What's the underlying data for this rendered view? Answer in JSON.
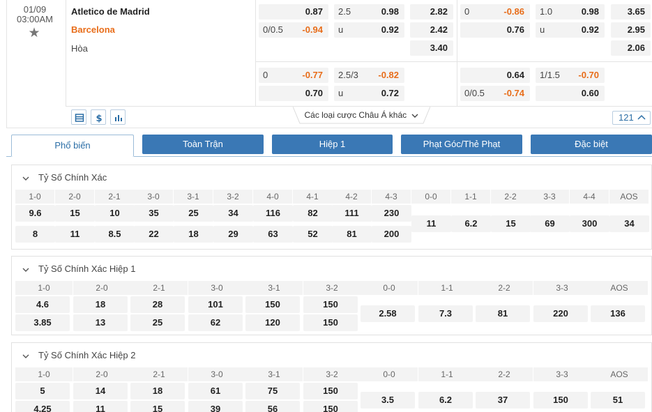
{
  "match": {
    "date": "01/09",
    "time": "03:00AM",
    "home": "Atletico de Madrid",
    "away": "Barcelona",
    "draw": "Hòa",
    "row1": {
      "c1": [
        "",
        "0.87"
      ],
      "c2": [
        "2.5",
        "0.98"
      ],
      "c3": "2.82",
      "c4": [
        "0",
        "-0.86"
      ],
      "c5": [
        "1.0",
        "0.98"
      ],
      "c6": "3.65"
    },
    "row2": {
      "c1": [
        "0/0.5",
        "-0.94"
      ],
      "c2": [
        "u",
        "0.92"
      ],
      "c3": "2.42",
      "c4": [
        "",
        "0.76"
      ],
      "c5": [
        "u",
        "0.92"
      ],
      "c6": "2.95"
    },
    "row3": {
      "c3": "3.40",
      "c6": "2.06"
    },
    "row4": {
      "c1": [
        "0",
        "-0.77"
      ],
      "c2": [
        "2.5/3",
        "-0.82"
      ],
      "c4": [
        "",
        "0.64"
      ],
      "c5": [
        "1/1.5",
        "-0.70"
      ]
    },
    "row5": {
      "c1": [
        "",
        "0.70"
      ],
      "c2": [
        "u",
        "0.72"
      ],
      "c4": [
        "0/0.5",
        "-0.74"
      ],
      "c5": [
        "",
        "0.60"
      ]
    },
    "more_label": "Các loại cược Châu Á khác",
    "count": "121"
  },
  "tabs": [
    "Phổ biến",
    "Toàn Trận",
    "Hiệp 1",
    "Phạt Góc/Thẻ Phạt",
    "Đặc biệt"
  ],
  "panels": [
    {
      "title": "Tỷ Số Chính Xác",
      "headers": [
        "1-0",
        "2-0",
        "2-1",
        "3-0",
        "3-1",
        "3-2",
        "4-0",
        "4-1",
        "4-2",
        "4-3",
        "0-0",
        "1-1",
        "2-2",
        "3-3",
        "4-4",
        "AOS"
      ],
      "home": [
        "9.6",
        "15",
        "10",
        "35",
        "25",
        "34",
        "116",
        "82",
        "111",
        "230"
      ],
      "away": [
        "8",
        "11",
        "8.5",
        "22",
        "18",
        "29",
        "63",
        "52",
        "81",
        "200"
      ],
      "draws": [
        "11",
        "6.2",
        "15",
        "69",
        "300",
        "34"
      ]
    },
    {
      "title": "Tỷ Số Chính Xác Hiệp 1",
      "headers": [
        "1-0",
        "2-0",
        "2-1",
        "3-0",
        "3-1",
        "3-2",
        "0-0",
        "1-1",
        "2-2",
        "3-3",
        "AOS"
      ],
      "home": [
        "4.6",
        "18",
        "28",
        "101",
        "150",
        "150"
      ],
      "away": [
        "3.85",
        "13",
        "25",
        "62",
        "120",
        "150"
      ],
      "draws": [
        "2.58",
        "7.3",
        "81",
        "220",
        "136"
      ]
    },
    {
      "title": "Tỷ Số Chính Xác Hiệp 2",
      "headers": [
        "1-0",
        "2-0",
        "2-1",
        "3-0",
        "3-1",
        "3-2",
        "0-0",
        "1-1",
        "2-2",
        "3-3",
        "AOS"
      ],
      "home": [
        "5",
        "14",
        "18",
        "61",
        "75",
        "150"
      ],
      "away": [
        "4.25",
        "11",
        "15",
        "39",
        "56",
        "150"
      ],
      "draws": [
        "3.5",
        "6.2",
        "37",
        "150",
        "51"
      ]
    }
  ],
  "colors": {
    "accent": "#3a78b5",
    "orange": "#e86d1a",
    "cell_bg": "#f3f3f3"
  },
  "icons": [
    "star-icon",
    "layout-icon",
    "dollar-icon",
    "bar-chart-icon",
    "chevron-down-icon",
    "chevron-up-icon"
  ]
}
